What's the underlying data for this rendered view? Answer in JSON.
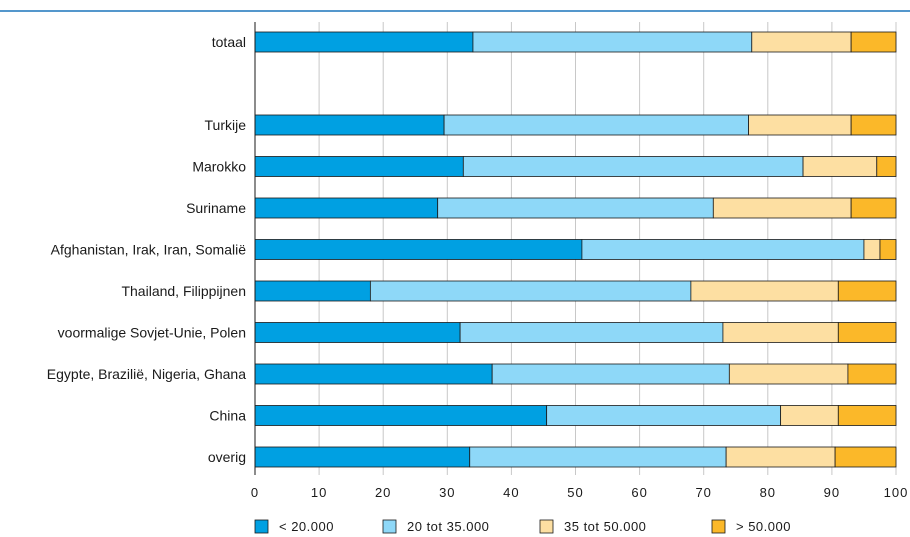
{
  "chart_data": {
    "type": "bar",
    "orientation": "horizontal",
    "stacked": true,
    "title": "",
    "xlabel": "",
    "ylabel": "",
    "xlim": [
      0,
      100
    ],
    "xticks": [
      "0",
      "10",
      "20",
      "30",
      "40",
      "50",
      "60",
      "70",
      "80",
      "90",
      "100"
    ],
    "grid": true,
    "legend_position": "bottom",
    "categories": [
      "totaal",
      "",
      "Turkije",
      "Marokko",
      "Suriname",
      "Afghanistan, Irak, Iran, Somalië",
      "Thailand, Filippijnen",
      "voormalige Sovjet-Unie, Polen",
      "Egypte, Brazilië, Nigeria, Ghana",
      "China",
      "overig"
    ],
    "series": [
      {
        "name": "< 20.000",
        "color": "#00a0e2",
        "values": [
          34,
          null,
          29.5,
          32.5,
          28.5,
          51,
          18,
          32,
          37,
          45.5,
          33.5
        ]
      },
      {
        "name": "20 tot 35.000",
        "color": "#8ed8f8",
        "values": [
          43.5,
          null,
          47.5,
          53,
          43,
          44,
          50,
          41,
          37,
          36.5,
          40
        ]
      },
      {
        "name": "35 tot 50.000",
        "color": "#fddfa2",
        "values": [
          15.5,
          null,
          16,
          11.5,
          21.5,
          2.5,
          23,
          18,
          18.5,
          9,
          17
        ]
      },
      {
        "name": "> 50.000",
        "color": "#fbb829",
        "values": [
          7,
          null,
          7,
          3,
          7,
          2.5,
          9,
          9,
          7.5,
          9,
          9.5
        ]
      }
    ]
  },
  "header_rule_color": "#1b75bb"
}
